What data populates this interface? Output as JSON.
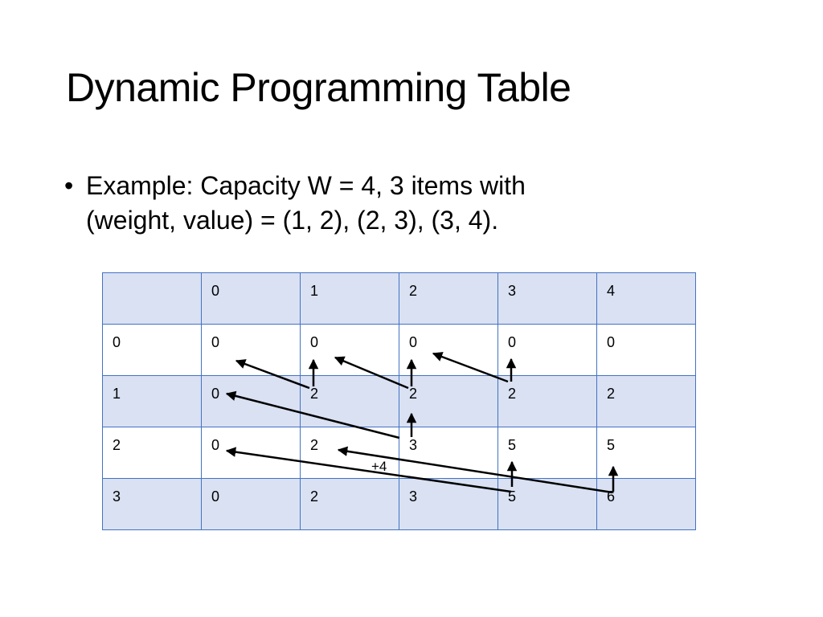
{
  "title": "Dynamic Programming Table",
  "bullet": {
    "lines": [
      "Example: Capacity W = 4, 3 items with",
      "(weight, value) = (1, 2), (2, 3), (3, 4)."
    ]
  },
  "table": {
    "header": [
      "0",
      "1",
      "2",
      "3",
      "4"
    ],
    "rows": [
      [
        "0",
        "0",
        "0",
        "0",
        "0",
        "0"
      ],
      [
        "1",
        "0",
        "2",
        "2",
        "2",
        "2"
      ],
      [
        "2",
        "0",
        "2",
        "3",
        "5",
        "5"
      ],
      [
        "3",
        "0",
        "2",
        "3",
        "5",
        "6"
      ]
    ]
  },
  "annotation": "+4"
}
